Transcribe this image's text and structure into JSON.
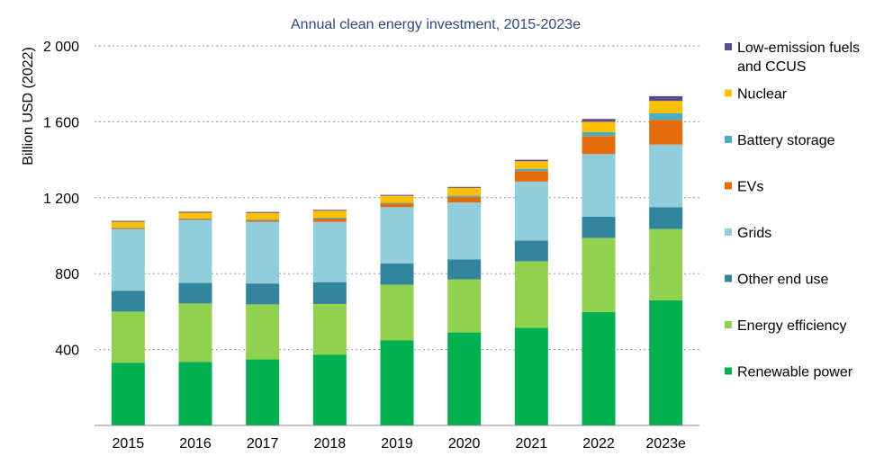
{
  "chart_data": {
    "type": "bar",
    "stacked": true,
    "title": "Annual clean energy investment, 2015-2023e",
    "xlabel": "",
    "ylabel": "Billion USD (2022)",
    "ylim": [
      0,
      2000
    ],
    "yticks": [
      400,
      800,
      1200,
      1600,
      2000
    ],
    "ytick_labels": [
      "400",
      "800",
      "1 200",
      "1 600",
      "2 000"
    ],
    "grid": "horizontal dotted",
    "legend_position": "right",
    "categories": [
      "2015",
      "2016",
      "2017",
      "2018",
      "2019",
      "2020",
      "2021",
      "2022",
      "2023e"
    ],
    "series": [
      {
        "name": "Renewable power",
        "color": "#00b050",
        "values": [
          330,
          335,
          348,
          372,
          448,
          490,
          515,
          598,
          660
        ]
      },
      {
        "name": "Energy efficiency",
        "color": "#92d050",
        "values": [
          270,
          308,
          290,
          268,
          293,
          280,
          350,
          390,
          375
        ]
      },
      {
        "name": "Other end use",
        "color": "#31859c",
        "values": [
          110,
          108,
          110,
          115,
          112,
          105,
          110,
          112,
          115
        ]
      },
      {
        "name": "Grids",
        "color": "#92cddc",
        "values": [
          325,
          332,
          325,
          318,
          297,
          300,
          310,
          330,
          330
        ]
      },
      {
        "name": "EVs",
        "color": "#e46c0a",
        "values": [
          5,
          5,
          8,
          18,
          18,
          30,
          55,
          95,
          130
        ]
      },
      {
        "name": "Battery storage",
        "color": "#4bacc6",
        "values": [
          3,
          3,
          4,
          5,
          5,
          7,
          12,
          20,
          35
        ]
      },
      {
        "name": "Nuclear",
        "color": "#ffc000",
        "values": [
          30,
          30,
          35,
          35,
          37,
          40,
          40,
          55,
          65
        ]
      },
      {
        "name": "Low-emission fuels and CCUS",
        "legend_lines": [
          "Low-emission fuels",
          "and CCUS"
        ],
        "color": "#5c4a8c",
        "values": [
          5,
          5,
          5,
          5,
          5,
          5,
          8,
          15,
          25
        ]
      }
    ]
  }
}
